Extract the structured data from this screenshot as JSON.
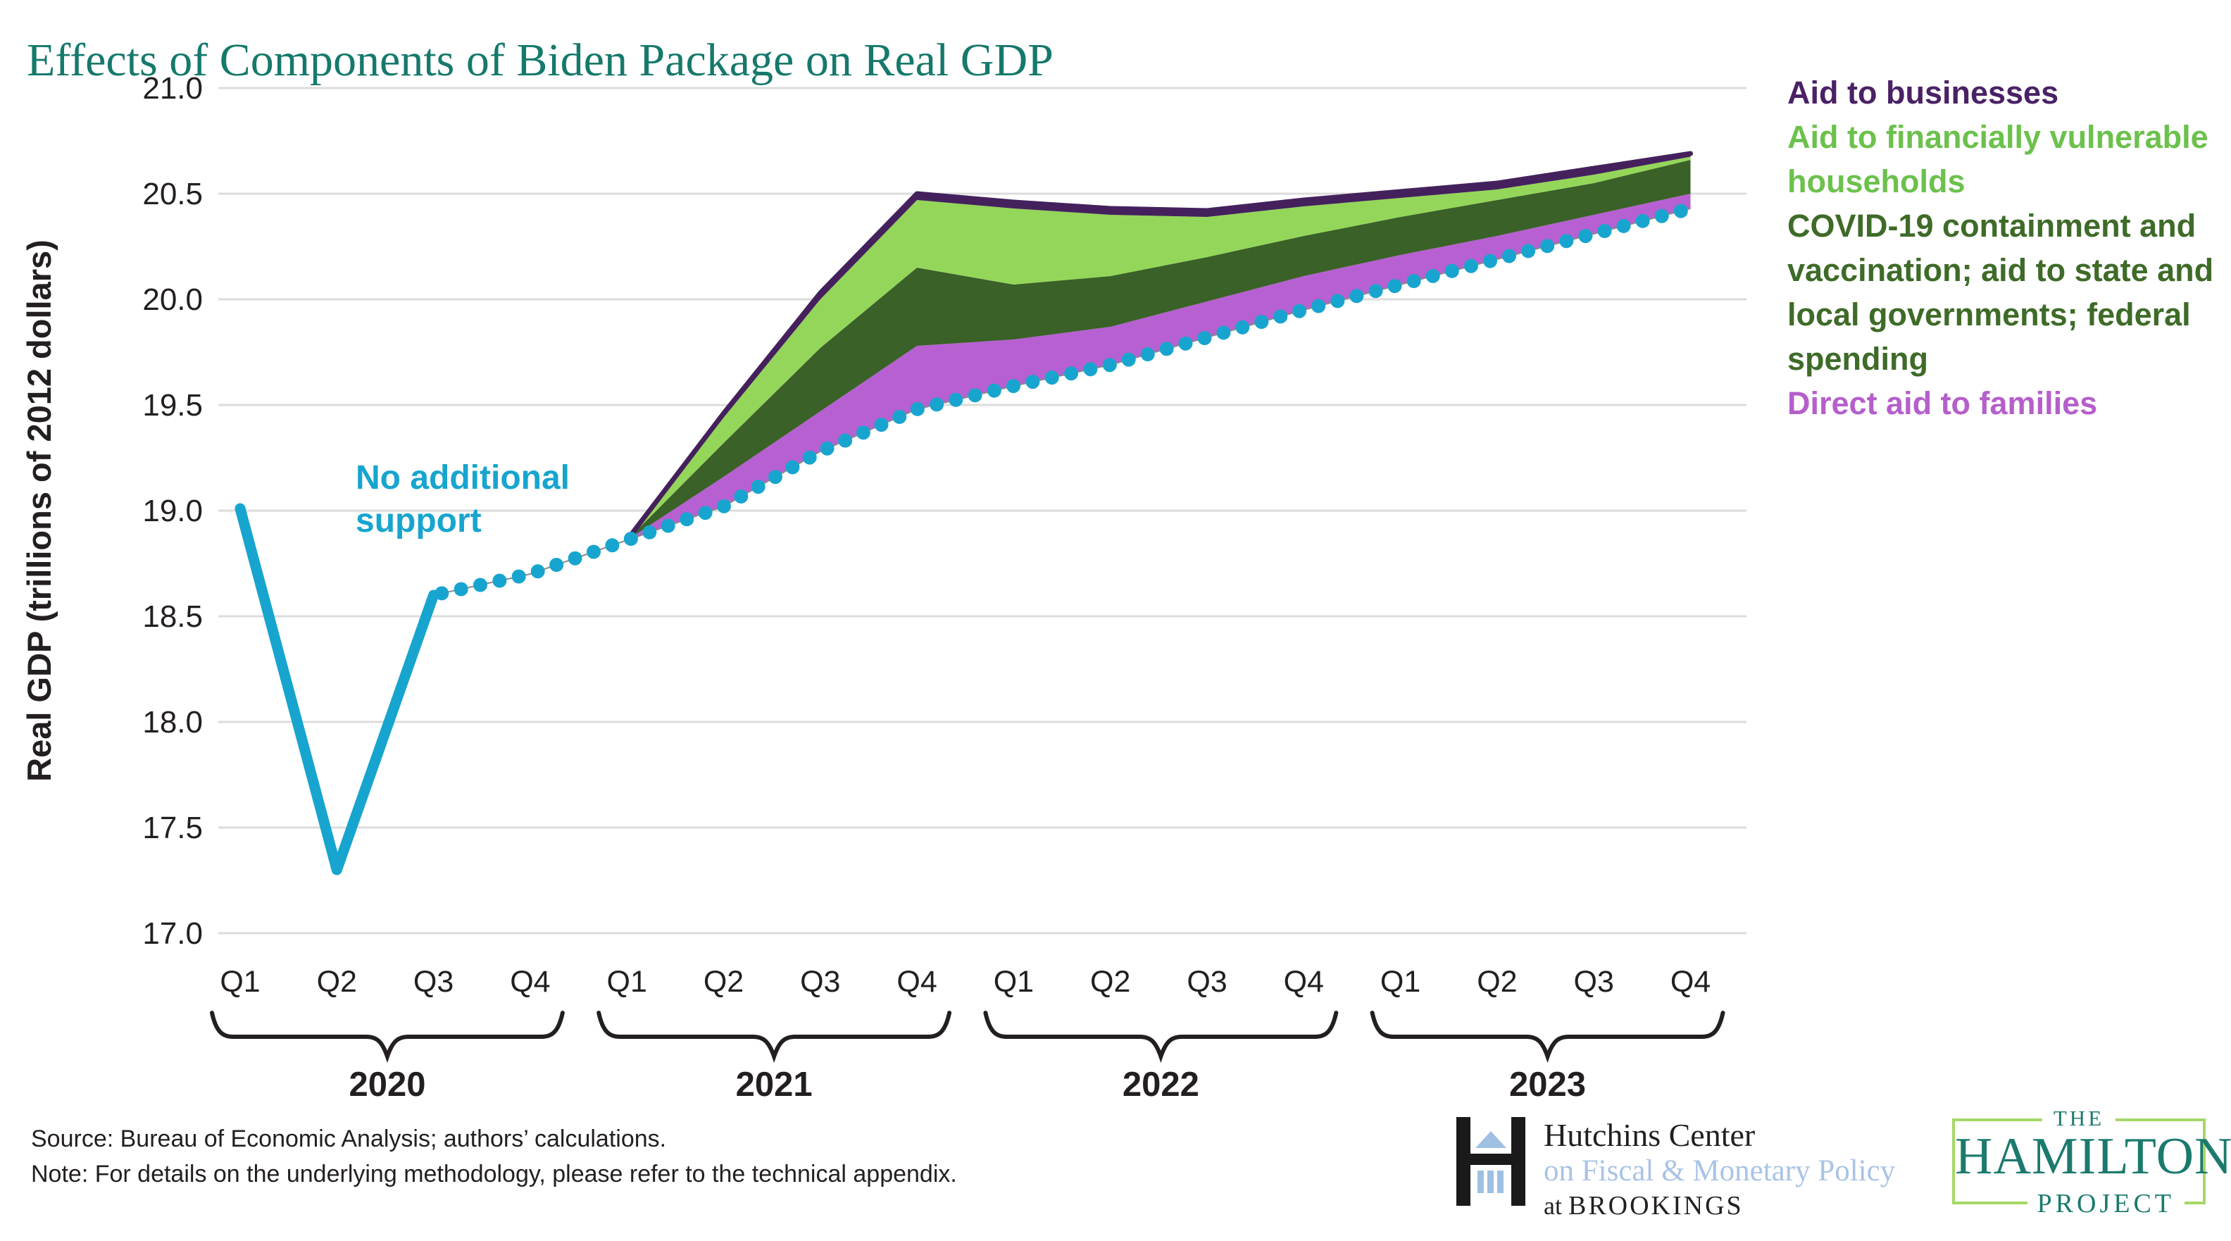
{
  "title": "Effects of Components of Biden Package on Real GDP",
  "colors": {
    "title": "#15796b",
    "grid": "#dcdcdc",
    "text": "#231f20",
    "no_support_line": "#17a5cf",
    "dotted_connector": "#8a8a8a",
    "aid_families_fill": "#b760d2",
    "covid_fill": "#3a6128",
    "vulnerable_fill": "#94d65a",
    "businesses_line": "#44215c",
    "legend_businesses": "#4a2165",
    "legend_vulnerable": "#6cc14d",
    "legend_covid": "#3e6b28",
    "legend_families": "#b55fcb",
    "hutchins_blue": "#a9c3e6",
    "hamilton_teal": "#1b7a6d",
    "hamilton_green": "#a5d867"
  },
  "annotation": {
    "text": "No additional\nsupport"
  },
  "legend": {
    "items": [
      {
        "label": "Aid to businesses",
        "color": "#4a2165"
      },
      {
        "label": "Aid to financially vulnerable\nhouseholds",
        "color": "#6cc14d"
      },
      {
        "label": "COVID-19 containment and\nvaccination; aid to state and\nlocal governments; federal\nspending",
        "color": "#3e6b28"
      },
      {
        "label": "Direct aid to families",
        "color": "#b55fcb"
      }
    ]
  },
  "y_axis": {
    "title": "Real GDP (trillions of 2012 dollars)",
    "ticks": [
      "21.0",
      "20.5",
      "20.0",
      "19.5",
      "19.0",
      "18.5",
      "18.0",
      "17.5",
      "17.0"
    ]
  },
  "x_axis": {
    "quarter_labels": [
      "Q1",
      "Q2",
      "Q3",
      "Q4",
      "Q1",
      "Q2",
      "Q3",
      "Q4",
      "Q1",
      "Q2",
      "Q3",
      "Q4",
      "Q1",
      "Q2",
      "Q3",
      "Q4"
    ],
    "years": [
      "2020",
      "2021",
      "2022",
      "2023"
    ]
  },
  "chart_data": {
    "type": "area",
    "title": "Effects of Components of Biden Package on Real GDP",
    "xlabel": "",
    "ylabel": "Real GDP (trillions of 2012 dollars)",
    "ylim": [
      17.0,
      21.0
    ],
    "grid": "horizontal",
    "legend_position": "right",
    "x": [
      "2020 Q1",
      "2020 Q2",
      "2020 Q3",
      "2020 Q4",
      "2021 Q1",
      "2021 Q2",
      "2021 Q3",
      "2021 Q4",
      "2022 Q1",
      "2022 Q2",
      "2022 Q3",
      "2022 Q4",
      "2023 Q1",
      "2023 Q2",
      "2023 Q3",
      "2023 Q4"
    ],
    "baseline": {
      "name": "No additional support",
      "values": [
        19.01,
        17.3,
        18.6,
        18.7,
        18.86,
        19.02,
        19.28,
        19.48,
        19.59,
        19.69,
        19.82,
        19.95,
        20.07,
        20.19,
        20.31,
        20.43
      ],
      "solid_through_index": 2,
      "style": "solid then dotted"
    },
    "stack_start_index": 4,
    "series": [
      {
        "name": "Direct aid to families",
        "color": "#b760d2",
        "cumulative_top": [
          18.86,
          19.16,
          19.47,
          19.78,
          19.81,
          19.87,
          19.99,
          20.11,
          20.21,
          20.3,
          20.4,
          20.5
        ]
      },
      {
        "name": "COVID-19 containment and vaccination; aid to state and local governments; federal spending",
        "color": "#3a6128",
        "cumulative_top": [
          18.86,
          19.32,
          19.77,
          20.15,
          20.07,
          20.11,
          20.2,
          20.3,
          20.39,
          20.47,
          20.55,
          20.66
        ]
      },
      {
        "name": "Aid to financially vulnerable households",
        "color": "#94d65a",
        "cumulative_top": [
          18.86,
          19.44,
          20.0,
          20.47,
          20.43,
          20.4,
          20.39,
          20.44,
          20.48,
          20.52,
          20.59,
          20.675
        ]
      },
      {
        "name": "Aid to businesses",
        "color": "#44215c",
        "cumulative_top": [
          18.86,
          19.46,
          20.03,
          20.5,
          20.46,
          20.43,
          20.42,
          20.47,
          20.51,
          20.55,
          20.62,
          20.69
        ]
      }
    ]
  },
  "notes": {
    "source": "Source: Bureau of Economic Analysis; authors’ calculations.",
    "note": "Note: For details on the underlying methodology, please refer to the technical appendix."
  },
  "logos": {
    "hutchins": {
      "line1": "Hutchins Center",
      "line2": "on Fiscal & Monetary Policy",
      "line3_prefix": "at ",
      "line3_name": "BROOKINGS"
    },
    "hamilton": {
      "the": "THE",
      "name": "HAMILTON",
      "project": "PROJECT"
    }
  }
}
